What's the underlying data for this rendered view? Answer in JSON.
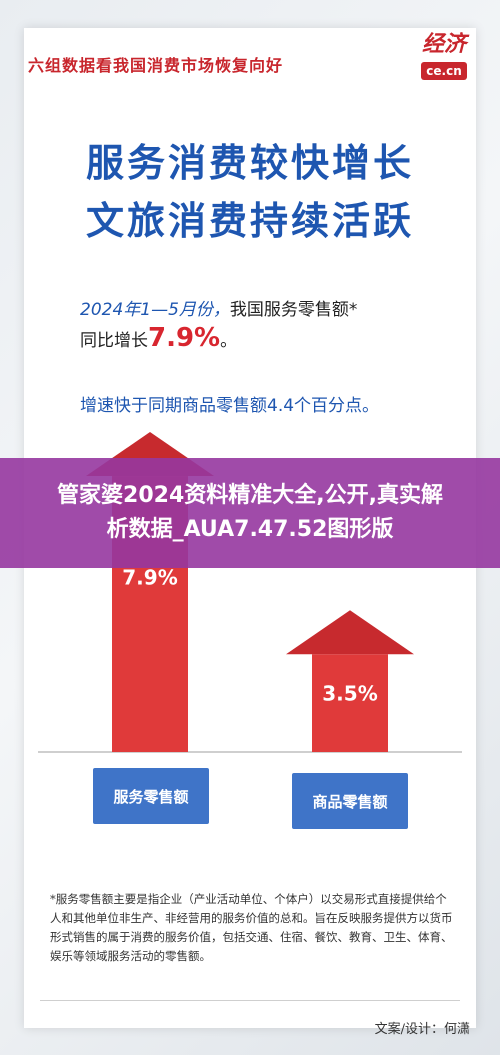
{
  "header": {
    "top_title": "六组数据看我国消费市场恢复向好",
    "logo_glyph": "经济",
    "logo_domain": "ce.cn"
  },
  "headline": {
    "line1": "服务消费较快增长",
    "line2": "文旅消费持续活跃"
  },
  "description": {
    "date_text": "2024年1—5月份，",
    "line1_rest": "我国服务零售额*",
    "line2_prefix": "同比增长",
    "highlight_value": "7.9%",
    "line2_suffix": "。",
    "para2": "增速快于同期商品零售额4.4个百分点。"
  },
  "banner": {
    "line1": "管家婆2024资料精准大全,公开,真实解",
    "line2": "析数据_AUA7.47.52图形版"
  },
  "chart_data": {
    "type": "bar",
    "categories": [
      "服务零售额",
      "商品零售额"
    ],
    "values": [
      7.9,
      3.5
    ],
    "value_labels": [
      "7.9%",
      "3.5%"
    ],
    "unit": "%",
    "colors": {
      "bar": "#e03a3a",
      "bar_dark": "#c72a2e",
      "category_box": "#3f74c8"
    },
    "ylim": [
      0,
      9
    ],
    "grid": false,
    "legend": "none"
  },
  "footnote": "*服务零售额主要是指企业（产业活动单位、个体户）以交易形式直接提供给个人和其他单位非生产、非经营用的服务价值的总和。旨在反映服务提供方以货币形式销售的属于消费的服务价值，包括交通、住宿、餐饮、教育、卫生、体育、娱乐等领域服务活动的零售额。",
  "credit": "文案/设计：何潇",
  "theme": {
    "primary_blue": "#1e56b0",
    "accent_red": "#c8262d",
    "banner_purple": "#9637a0"
  }
}
